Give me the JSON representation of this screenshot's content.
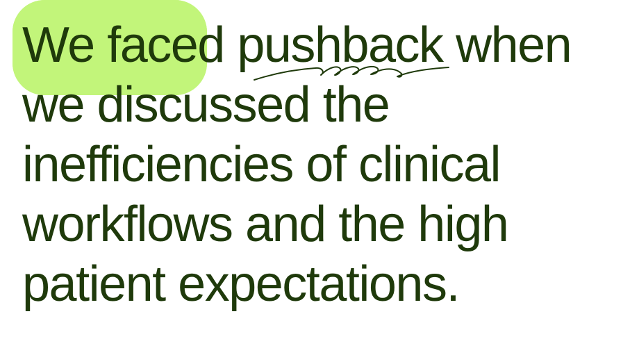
{
  "colors": {
    "background": "#ffffff",
    "text": "#1f3a0b",
    "highlight": "#c2f57a",
    "scribble": "#1f3a0b"
  },
  "quote": {
    "line1": {
      "pre": "We faced ",
      "emphasis": "pushback",
      "post": " when"
    },
    "line2": "we discussed the",
    "line3": "inefficiencies of clinical",
    "line4": "workflows and the high",
    "line5": "patient expectations."
  },
  "decorations": {
    "highlight_shape": "scalloped-marker-highlight",
    "underline_shape": "hand-drawn-scribble-underline"
  }
}
